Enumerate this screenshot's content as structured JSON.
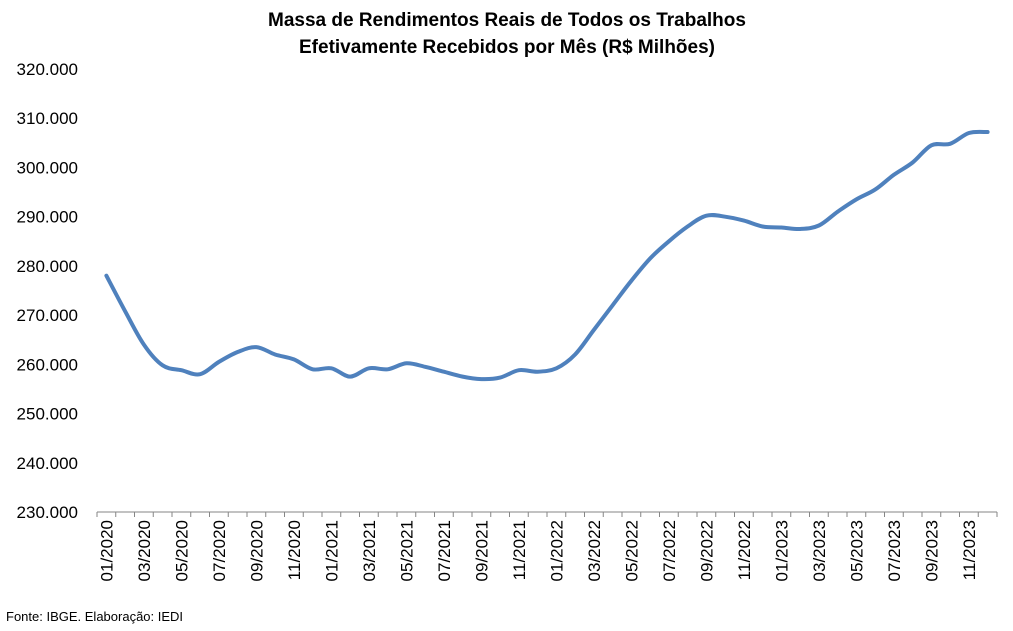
{
  "chart_data": {
    "type": "line",
    "title_line1": "Massa de Rendimentos Reais de Todos os Trabalhos",
    "title_line2": "Efetivamente Recebidos por Mês (R$ Milhões)",
    "xlabel": "",
    "ylabel": "",
    "ylim": [
      230000,
      320000
    ],
    "yticks": [
      "230.000",
      "240.000",
      "250.000",
      "260.000",
      "270.000",
      "280.000",
      "290.000",
      "300.000",
      "310.000",
      "320.000"
    ],
    "categories": [
      "01/2020",
      "02/2020",
      "03/2020",
      "04/2020",
      "05/2020",
      "06/2020",
      "07/2020",
      "08/2020",
      "09/2020",
      "10/2020",
      "11/2020",
      "12/2020",
      "01/2021",
      "02/2021",
      "03/2021",
      "04/2021",
      "05/2021",
      "06/2021",
      "07/2021",
      "08/2021",
      "09/2021",
      "10/2021",
      "11/2021",
      "12/2021",
      "01/2022",
      "02/2022",
      "03/2022",
      "04/2022",
      "05/2022",
      "06/2022",
      "07/2022",
      "08/2022",
      "09/2022",
      "10/2022",
      "11/2022",
      "12/2022",
      "01/2023",
      "02/2023",
      "03/2023",
      "04/2023",
      "05/2023",
      "06/2023",
      "07/2023",
      "08/2023",
      "09/2023",
      "10/2023",
      "11/2023",
      "12/2023"
    ],
    "xtick_labels": [
      "01/2020",
      "03/2020",
      "05/2020",
      "07/2020",
      "09/2020",
      "11/2020",
      "01/2021",
      "03/2021",
      "05/2021",
      "07/2021",
      "09/2021",
      "11/2021",
      "01/2022",
      "03/2022",
      "05/2022",
      "07/2022",
      "09/2022",
      "11/2022",
      "01/2023",
      "03/2023",
      "05/2023",
      "07/2023",
      "09/2023",
      "11/2023"
    ],
    "series": [
      {
        "values": [
          278000,
          270800,
          264000,
          259800,
          258800,
          258000,
          260500,
          262500,
          263500,
          262000,
          261000,
          259000,
          259200,
          257500,
          259200,
          259000,
          260200,
          259500,
          258500,
          257500,
          257000,
          257300,
          258800,
          258500,
          259200,
          262000,
          267000,
          272000,
          277000,
          281500,
          285000,
          288000,
          290200,
          290000,
          289200,
          288000,
          287800,
          287500,
          288200,
          291000,
          293500,
          295500,
          298500,
          301000,
          304500,
          304800,
          307000,
          307200
        ],
        "color": "#4F81BD"
      }
    ],
    "grid": false,
    "legend": "none"
  },
  "source": "Fonte: IBGE. Elaboração: IEDI"
}
